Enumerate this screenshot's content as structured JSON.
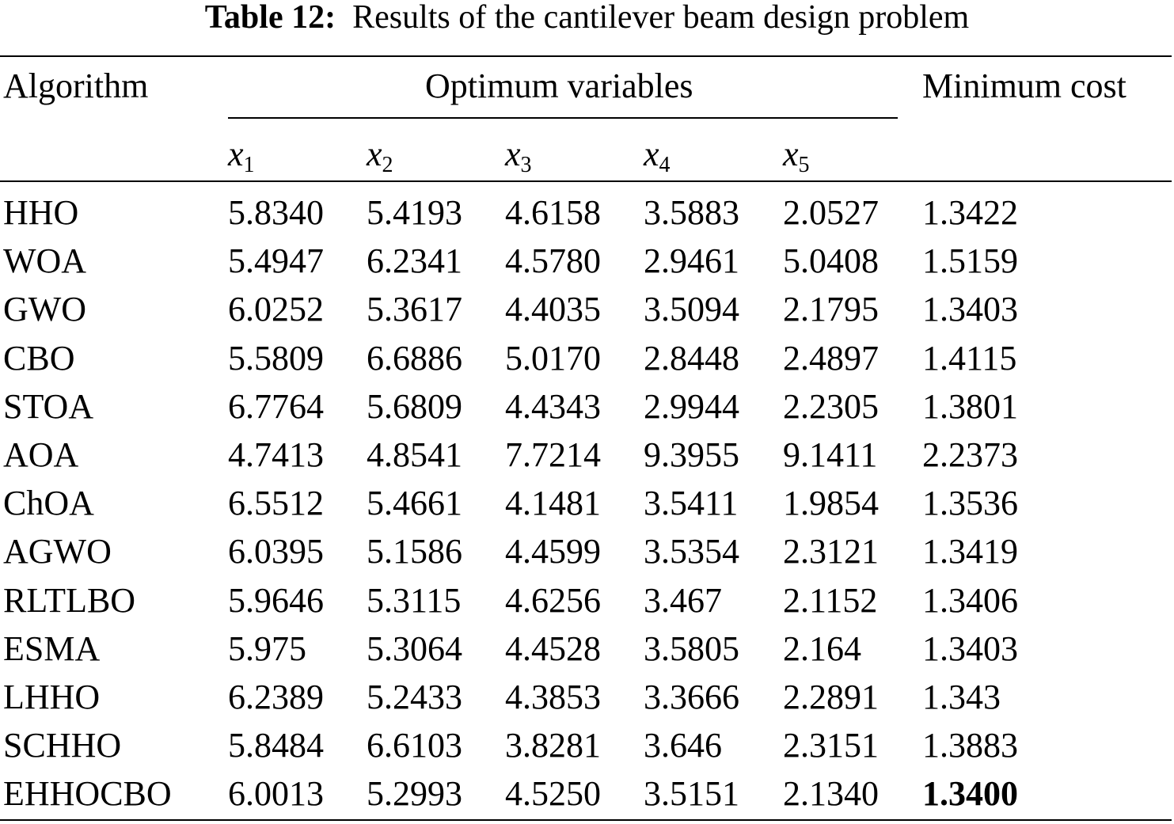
{
  "caption": {
    "label": "Table 12:",
    "text": "Results of the cantilever beam design problem"
  },
  "header": {
    "algorithm": "Algorithm",
    "group": "Optimum variables",
    "cost": "Minimum cost",
    "vars": [
      {
        "base": "x",
        "sub": "1"
      },
      {
        "base": "x",
        "sub": "2"
      },
      {
        "base": "x",
        "sub": "3"
      },
      {
        "base": "x",
        "sub": "4"
      },
      {
        "base": "x",
        "sub": "5"
      }
    ]
  },
  "rows": [
    {
      "algorithm": "HHO",
      "x1": "5.8340",
      "x2": "5.4193",
      "x3": "4.6158",
      "x4": "3.5883",
      "x5": "2.0527",
      "cost": "1.3422",
      "best": false
    },
    {
      "algorithm": "WOA",
      "x1": "5.4947",
      "x2": "6.2341",
      "x3": "4.5780",
      "x4": "2.9461",
      "x5": "5.0408",
      "cost": "1.5159",
      "best": false
    },
    {
      "algorithm": "GWO",
      "x1": "6.0252",
      "x2": "5.3617",
      "x3": "4.4035",
      "x4": "3.5094",
      "x5": "2.1795",
      "cost": "1.3403",
      "best": false
    },
    {
      "algorithm": "CBO",
      "x1": "5.5809",
      "x2": "6.6886",
      "x3": "5.0170",
      "x4": "2.8448",
      "x5": "2.4897",
      "cost": "1.4115",
      "best": false
    },
    {
      "algorithm": "STOA",
      "x1": "6.7764",
      "x2": "5.6809",
      "x3": "4.4343",
      "x4": "2.9944",
      "x5": "2.2305",
      "cost": "1.3801",
      "best": false
    },
    {
      "algorithm": "AOA",
      "x1": "4.7413",
      "x2": "4.8541",
      "x3": "7.7214",
      "x4": "9.3955",
      "x5": "9.1411",
      "cost": "2.2373",
      "best": false
    },
    {
      "algorithm": "ChOA",
      "x1": "6.5512",
      "x2": "5.4661",
      "x3": "4.1481",
      "x4": "3.5411",
      "x5": "1.9854",
      "cost": "1.3536",
      "best": false
    },
    {
      "algorithm": "AGWO",
      "x1": "6.0395",
      "x2": "5.1586",
      "x3": "4.4599",
      "x4": "3.5354",
      "x5": "2.3121",
      "cost": "1.3419",
      "best": false
    },
    {
      "algorithm": "RLTLBO",
      "x1": "5.9646",
      "x2": "5.3115",
      "x3": "4.6256",
      "x4": "3.467",
      "x5": "2.1152",
      "cost": "1.3406",
      "best": false
    },
    {
      "algorithm": "ESMA",
      "x1": "5.975",
      "x2": "5.3064",
      "x3": "4.4528",
      "x4": "3.5805",
      "x5": "2.164",
      "cost": "1.3403",
      "best": false
    },
    {
      "algorithm": "LHHO",
      "x1": "6.2389",
      "x2": "5.2433",
      "x3": "4.3853",
      "x4": "3.3666",
      "x5": "2.2891",
      "cost": "1.343",
      "best": false
    },
    {
      "algorithm": "SCHHO",
      "x1": "5.8484",
      "x2": "6.6103",
      "x3": "3.8281",
      "x4": "3.646",
      "x5": "2.3151",
      "cost": "1.3883",
      "best": false
    },
    {
      "algorithm": "EHHOCBO",
      "x1": "6.0013",
      "x2": "5.2993",
      "x3": "4.5250",
      "x4": "3.5151",
      "x5": "2.1340",
      "cost": "1.3400",
      "best": true
    }
  ]
}
